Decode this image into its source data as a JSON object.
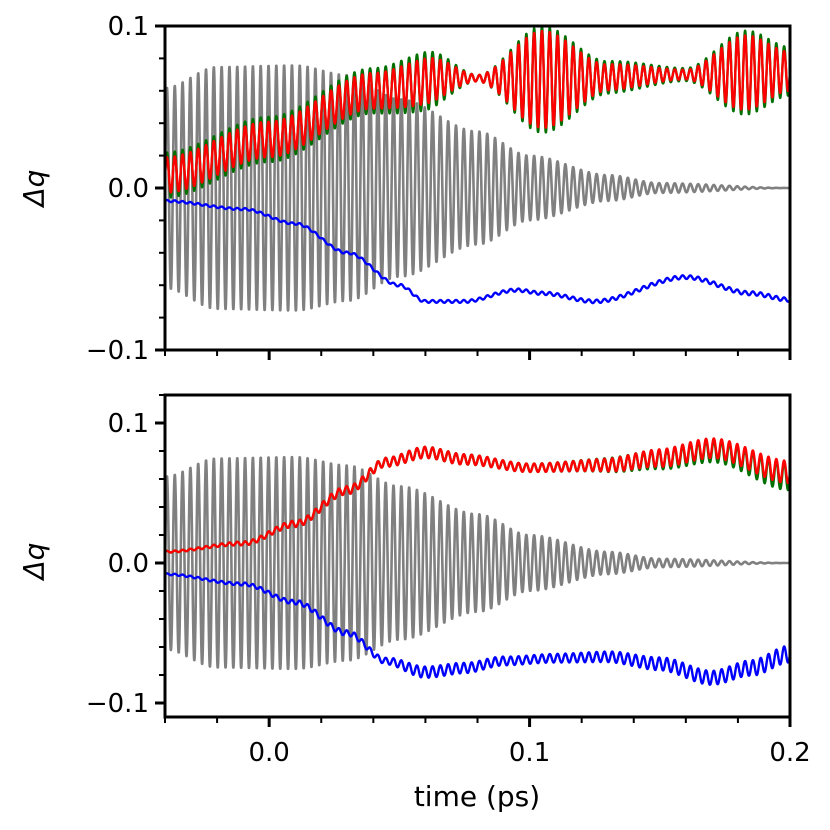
{
  "chart_data": [
    {
      "type": "line",
      "panel": "top",
      "title": "",
      "xlabel": "",
      "ylabel": "Δq",
      "xlim": [
        -0.04,
        0.2
      ],
      "ylim": [
        -0.1,
        0.1
      ],
      "y_ticks": [
        -0.1,
        0.0,
        0.1
      ],
      "y_tick_labels": [
        "−0.1",
        "0.0",
        "0.1"
      ],
      "x_ticks": [
        0.0,
        0.1,
        0.2
      ],
      "x_tick_labels": [
        "",
        "",
        ""
      ],
      "series": [
        {
          "name": "gray",
          "color": "#808080",
          "kind": "oscillation",
          "center": [
            [
              -0.04,
              0.0
            ],
            [
              0.2,
              0.0
            ]
          ],
          "amp": [
            [
              -0.04,
              0.062
            ],
            [
              -0.02,
              0.075
            ],
            [
              0.01,
              0.076
            ],
            [
              0.03,
              0.07
            ],
            [
              0.05,
              0.055
            ],
            [
              0.08,
              0.035
            ],
            [
              0.1,
              0.02
            ],
            [
              0.13,
              0.008
            ],
            [
              0.15,
              0.003
            ],
            [
              0.2,
              0.0
            ]
          ],
          "period": 0.003
        },
        {
          "name": "blue",
          "color": "#0000ff",
          "kind": "smooth",
          "center": [
            [
              -0.04,
              -0.008
            ],
            [
              -0.01,
              -0.013
            ],
            [
              0.01,
              -0.022
            ],
            [
              0.03,
              -0.04
            ],
            [
              0.05,
              -0.06
            ],
            [
              0.06,
              -0.07
            ],
            [
              0.075,
              -0.07
            ],
            [
              0.095,
              -0.063
            ],
            [
              0.105,
              -0.065
            ],
            [
              0.125,
              -0.07
            ],
            [
              0.16,
              -0.055
            ],
            [
              0.185,
              -0.065
            ],
            [
              0.2,
              -0.069
            ]
          ],
          "amp": [
            [
              -0.04,
              0.0006
            ],
            [
              0.2,
              0.0012
            ]
          ],
          "period": 0.003
        },
        {
          "name": "green",
          "color": "#007000",
          "kind": "oscillation",
          "center": [
            [
              -0.04,
              0.008
            ],
            [
              0.0,
              0.03
            ],
            [
              0.04,
              0.06
            ],
            [
              0.07,
              0.068
            ],
            [
              0.105,
              0.067
            ],
            [
              0.16,
              0.07
            ],
            [
              0.2,
              0.072
            ]
          ],
          "amp": [
            [
              -0.04,
              0.014
            ],
            [
              0.04,
              0.014
            ],
            [
              0.06,
              0.018
            ],
            [
              0.08,
              0.002
            ],
            [
              0.105,
              0.033
            ],
            [
              0.13,
              0.01
            ],
            [
              0.16,
              0.004
            ],
            [
              0.183,
              0.026
            ],
            [
              0.2,
              0.015
            ]
          ],
          "period": 0.003
        },
        {
          "name": "red",
          "color": "#ff0000",
          "kind": "oscillation",
          "center": [
            [
              -0.04,
              0.008
            ],
            [
              0.0,
              0.03
            ],
            [
              0.04,
              0.06
            ],
            [
              0.07,
              0.068
            ],
            [
              0.105,
              0.067
            ],
            [
              0.16,
              0.07
            ],
            [
              0.2,
              0.072
            ]
          ],
          "amp": [
            [
              -0.04,
              0.011
            ],
            [
              0.04,
              0.011
            ],
            [
              0.06,
              0.014
            ],
            [
              0.08,
              0.002
            ],
            [
              0.105,
              0.03
            ],
            [
              0.13,
              0.008
            ],
            [
              0.16,
              0.003
            ],
            [
              0.183,
              0.023
            ],
            [
              0.2,
              0.012
            ]
          ],
          "period": 0.003
        }
      ]
    },
    {
      "type": "line",
      "panel": "bottom",
      "title": "",
      "xlabel": "time (ps)",
      "ylabel": "Δq",
      "xlim": [
        -0.04,
        0.2
      ],
      "ylim": [
        -0.11,
        0.12
      ],
      "y_ticks": [
        -0.1,
        0.0,
        0.1
      ],
      "y_tick_labels": [
        "−0.1",
        "0.0",
        "0.1"
      ],
      "x_ticks": [
        0.0,
        0.1,
        0.2
      ],
      "x_tick_labels": [
        "0.0",
        "0.1",
        "0.2"
      ],
      "series": [
        {
          "name": "gray",
          "color": "#808080",
          "kind": "oscillation",
          "center": [
            [
              -0.04,
              0.0
            ],
            [
              0.2,
              0.0
            ]
          ],
          "amp": [
            [
              -0.04,
              0.062
            ],
            [
              -0.02,
              0.075
            ],
            [
              0.01,
              0.076
            ],
            [
              0.03,
              0.07
            ],
            [
              0.05,
              0.055
            ],
            [
              0.08,
              0.035
            ],
            [
              0.1,
              0.02
            ],
            [
              0.13,
              0.008
            ],
            [
              0.15,
              0.003
            ],
            [
              0.2,
              0.0
            ]
          ],
          "period": 0.003
        },
        {
          "name": "blue",
          "color": "#0000ff",
          "kind": "smooth",
          "center": [
            [
              -0.04,
              -0.008
            ],
            [
              -0.01,
              -0.015
            ],
            [
              0.01,
              -0.028
            ],
            [
              0.03,
              -0.05
            ],
            [
              0.045,
              -0.07
            ],
            [
              0.06,
              -0.078
            ],
            [
              0.075,
              -0.075
            ],
            [
              0.09,
              -0.07
            ],
            [
              0.11,
              -0.068
            ],
            [
              0.13,
              -0.067
            ],
            [
              0.15,
              -0.072
            ],
            [
              0.17,
              -0.082
            ],
            [
              0.185,
              -0.075
            ],
            [
              0.2,
              -0.065
            ]
          ],
          "amp": [
            [
              -0.04,
              0.0006
            ],
            [
              0.04,
              0.002
            ],
            [
              0.06,
              0.004
            ],
            [
              0.1,
              0.003
            ],
            [
              0.17,
              0.005
            ],
            [
              0.2,
              0.006
            ]
          ],
          "period": 0.003
        },
        {
          "name": "green",
          "color": "#007000",
          "kind": "oscillation",
          "center": [
            [
              -0.04,
              0.008
            ],
            [
              -0.01,
              0.014
            ],
            [
              0.01,
              0.028
            ],
            [
              0.03,
              0.052
            ],
            [
              0.045,
              0.072
            ],
            [
              0.06,
              0.079
            ],
            [
              0.075,
              0.074
            ],
            [
              0.1,
              0.068
            ],
            [
              0.13,
              0.07
            ],
            [
              0.15,
              0.074
            ],
            [
              0.17,
              0.08
            ],
            [
              0.2,
              0.062
            ]
          ],
          "amp": [
            [
              -0.04,
              0.0006
            ],
            [
              0.04,
              0.003
            ],
            [
              0.06,
              0.004
            ],
            [
              0.1,
              0.003
            ],
            [
              0.17,
              0.008
            ],
            [
              0.2,
              0.01
            ]
          ],
          "period": 0.003
        },
        {
          "name": "red",
          "color": "#ff0000",
          "kind": "oscillation",
          "center": [
            [
              -0.04,
              0.008
            ],
            [
              -0.01,
              0.014
            ],
            [
              0.01,
              0.028
            ],
            [
              0.03,
              0.052
            ],
            [
              0.045,
              0.072
            ],
            [
              0.06,
              0.079
            ],
            [
              0.075,
              0.074
            ],
            [
              0.1,
              0.068
            ],
            [
              0.13,
              0.07
            ],
            [
              0.15,
              0.075
            ],
            [
              0.17,
              0.082
            ],
            [
              0.2,
              0.065
            ]
          ],
          "amp": [
            [
              -0.04,
              0.0006
            ],
            [
              0.04,
              0.003
            ],
            [
              0.06,
              0.004
            ],
            [
              0.1,
              0.003
            ],
            [
              0.17,
              0.007
            ],
            [
              0.2,
              0.008
            ]
          ],
          "period": 0.003
        }
      ]
    }
  ]
}
